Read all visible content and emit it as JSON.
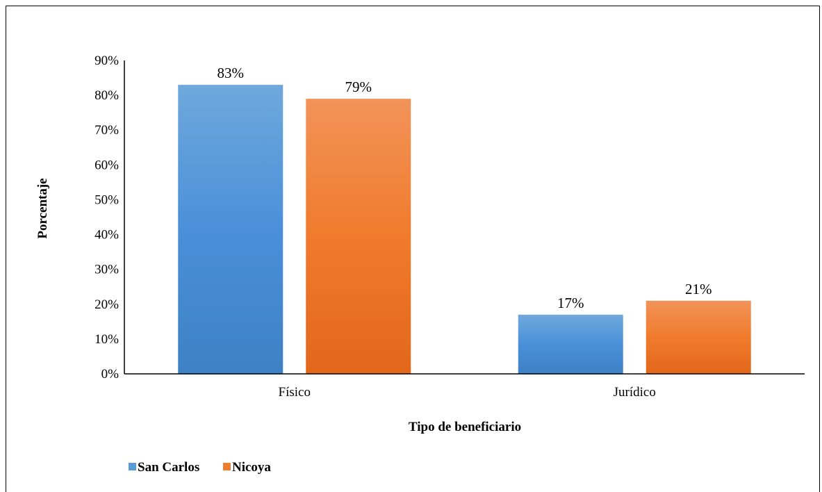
{
  "chart_data": {
    "type": "bar",
    "categories": [
      "Físico",
      "Jurídico"
    ],
    "series": [
      {
        "name": "San Carlos",
        "values": [
          83,
          17
        ],
        "labels": [
          "83%",
          "17%"
        ],
        "color": "#5B9BD5"
      },
      {
        "name": "Nicoya",
        "values": [
          79,
          21
        ],
        "labels": [
          "79%",
          "21%"
        ],
        "color": "#ED7D31"
      }
    ],
    "xlabel": "Tipo de beneficiario",
    "ylabel": "Porcentaje",
    "ylim": [
      0,
      90
    ],
    "yticks": [
      "0%",
      "10%",
      "20%",
      "30%",
      "40%",
      "50%",
      "60%",
      "70%",
      "80%",
      "90%"
    ],
    "grid": false,
    "legend_position": "bottom-left"
  }
}
